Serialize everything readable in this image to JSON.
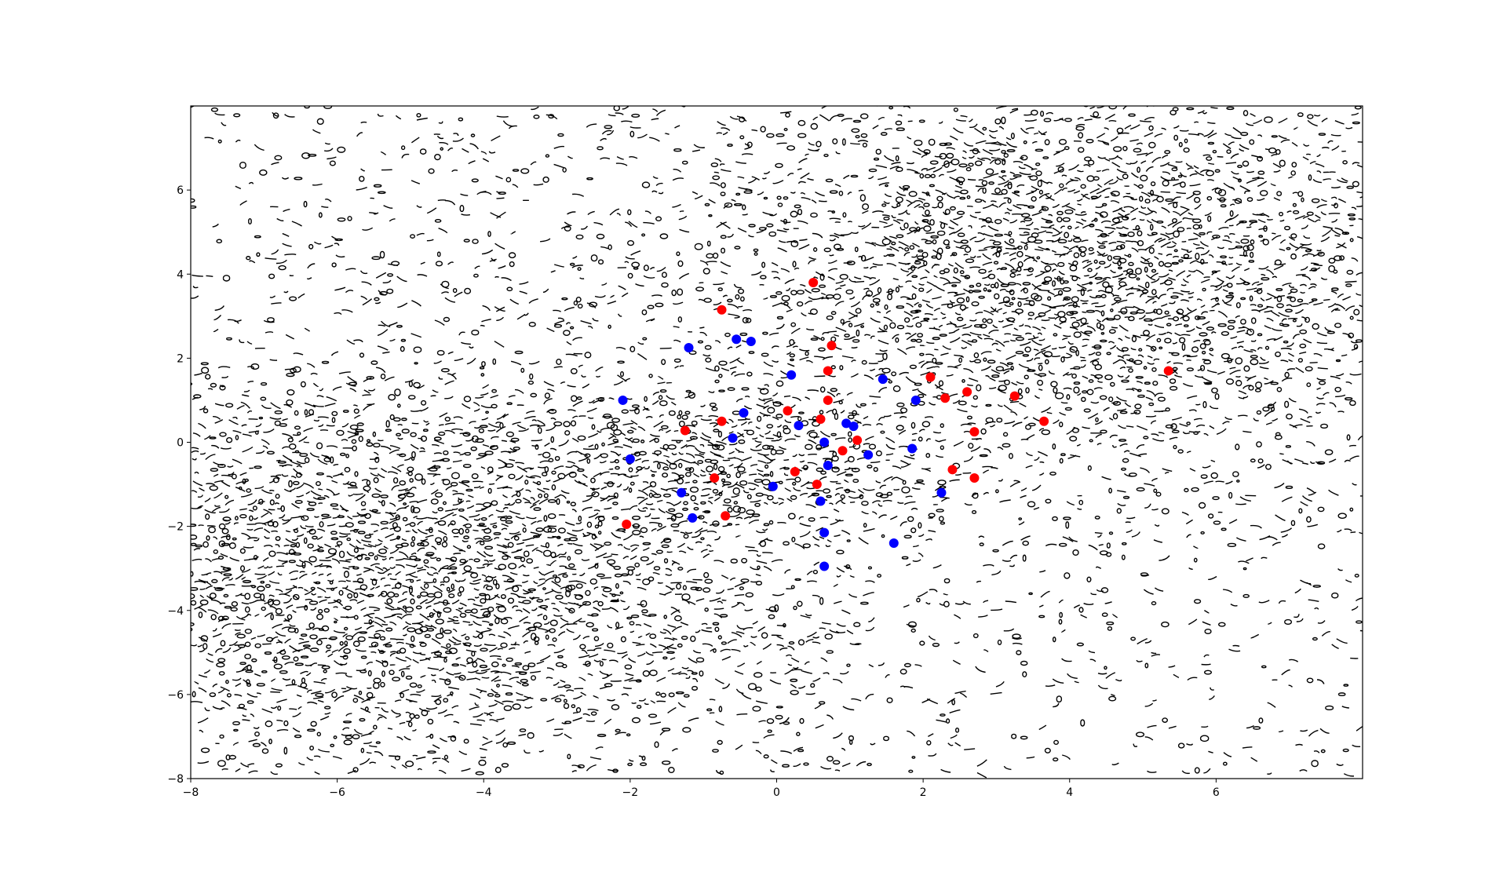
{
  "chart_data": {
    "type": "scatter",
    "title": "",
    "xlabel": "",
    "ylabel": "",
    "xlim": [
      -8,
      8
    ],
    "ylim": [
      -8,
      8
    ],
    "x_ticks": [
      -8,
      -6,
      -4,
      -2,
      0,
      2,
      4,
      6
    ],
    "y_ticks": [
      -8,
      -6,
      -4,
      -2,
      0,
      2,
      4,
      6
    ],
    "x_tick_labels": [
      "−8",
      "−6",
      "−4",
      "−2",
      "0",
      "2",
      "4",
      "6"
    ],
    "y_tick_labels": [
      "−8",
      "−6",
      "−4",
      "−2",
      "0",
      "2",
      "4",
      "6"
    ],
    "grid": false,
    "legend": false,
    "background": "noisy black contour lines (decision-boundary contour plot)",
    "series": [
      {
        "color": "#ff0000",
        "points": [
          [
            -0.75,
            3.15
          ],
          [
            0.5,
            3.8
          ],
          [
            0.75,
            2.3
          ],
          [
            0.7,
            1.7
          ],
          [
            0.7,
            1.0
          ],
          [
            0.6,
            0.55
          ],
          [
            0.15,
            0.75
          ],
          [
            -0.75,
            0.5
          ],
          [
            -1.25,
            0.28
          ],
          [
            1.1,
            0.05
          ],
          [
            0.9,
            -0.2
          ],
          [
            -0.85,
            -0.85
          ],
          [
            0.25,
            -0.7
          ],
          [
            0.55,
            -1.0
          ],
          [
            -0.7,
            -1.75
          ],
          [
            -2.05,
            -1.95
          ],
          [
            2.1,
            1.55
          ],
          [
            2.3,
            1.05
          ],
          [
            2.6,
            1.2
          ],
          [
            3.25,
            1.1
          ],
          [
            3.65,
            0.5
          ],
          [
            2.7,
            0.25
          ],
          [
            2.4,
            -0.65
          ],
          [
            2.7,
            -0.85
          ],
          [
            5.35,
            1.7
          ]
        ]
      },
      {
        "color": "#0000ff",
        "points": [
          [
            -1.2,
            2.25
          ],
          [
            -0.55,
            2.45
          ],
          [
            -0.35,
            2.4
          ],
          [
            0.2,
            1.6
          ],
          [
            -2.1,
            1.0
          ],
          [
            -0.45,
            0.7
          ],
          [
            0.3,
            0.4
          ],
          [
            -0.6,
            0.1
          ],
          [
            0.65,
            0.0
          ],
          [
            -2.0,
            -0.4
          ],
          [
            0.7,
            -0.55
          ],
          [
            0.95,
            0.45
          ],
          [
            1.05,
            0.38
          ],
          [
            1.25,
            -0.3
          ],
          [
            1.45,
            1.5
          ],
          [
            1.9,
            1.0
          ],
          [
            1.85,
            -0.15
          ],
          [
            -0.05,
            -1.05
          ],
          [
            -1.3,
            -1.2
          ],
          [
            -1.15,
            -1.8
          ],
          [
            0.6,
            -1.4
          ],
          [
            0.65,
            -2.15
          ],
          [
            0.65,
            -2.95
          ],
          [
            1.6,
            -2.4
          ],
          [
            2.25,
            -1.2
          ]
        ]
      }
    ]
  }
}
